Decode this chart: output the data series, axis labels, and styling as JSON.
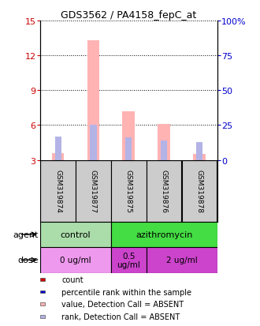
{
  "title": "GDS3562 / PA4158_fepC_at",
  "samples": [
    "GSM319874",
    "GSM319877",
    "GSM319875",
    "GSM319876",
    "GSM319878"
  ],
  "value_bars": [
    3.6,
    13.3,
    7.2,
    6.1,
    3.5
  ],
  "rank_bars": [
    17,
    25,
    16,
    14,
    13
  ],
  "ylim_left": [
    3,
    15
  ],
  "ylim_right": [
    0,
    100
  ],
  "yticks_left": [
    3,
    6,
    9,
    12,
    15
  ],
  "yticks_right": [
    0,
    25,
    50,
    75,
    100
  ],
  "bar_color_value": "#ffb3b3",
  "bar_color_rank": "#b3b3e6",
  "left_tick_color": "#cc0000",
  "right_tick_color": "#0000cc",
  "agent_row": [
    {
      "label": "control",
      "span": [
        0,
        2
      ],
      "color": "#aaddaa"
    },
    {
      "label": "azithromycin",
      "span": [
        2,
        5
      ],
      "color": "#44dd44"
    }
  ],
  "dose_row": [
    {
      "label": "0 ug/ml",
      "span": [
        0,
        2
      ],
      "color": "#ee99ee"
    },
    {
      "label": "0.5\nug/ml",
      "span": [
        2,
        3
      ],
      "color": "#cc44cc"
    },
    {
      "label": "2 ug/ml",
      "span": [
        3,
        5
      ],
      "color": "#cc44cc"
    }
  ],
  "legend_items": [
    {
      "label": "count",
      "color": "#cc0000"
    },
    {
      "label": "percentile rank within the sample",
      "color": "#0000cc"
    },
    {
      "label": "value, Detection Call = ABSENT",
      "color": "#ffb3b3"
    },
    {
      "label": "rank, Detection Call = ABSENT",
      "color": "#b3b3e6"
    }
  ],
  "agent_label": "agent",
  "dose_label": "dose",
  "bar_width": 0.35,
  "rank_bar_width": 0.18,
  "background_color": "#ffffff",
  "plot_bg_color": "#ffffff",
  "sample_box_color": "#cccccc"
}
